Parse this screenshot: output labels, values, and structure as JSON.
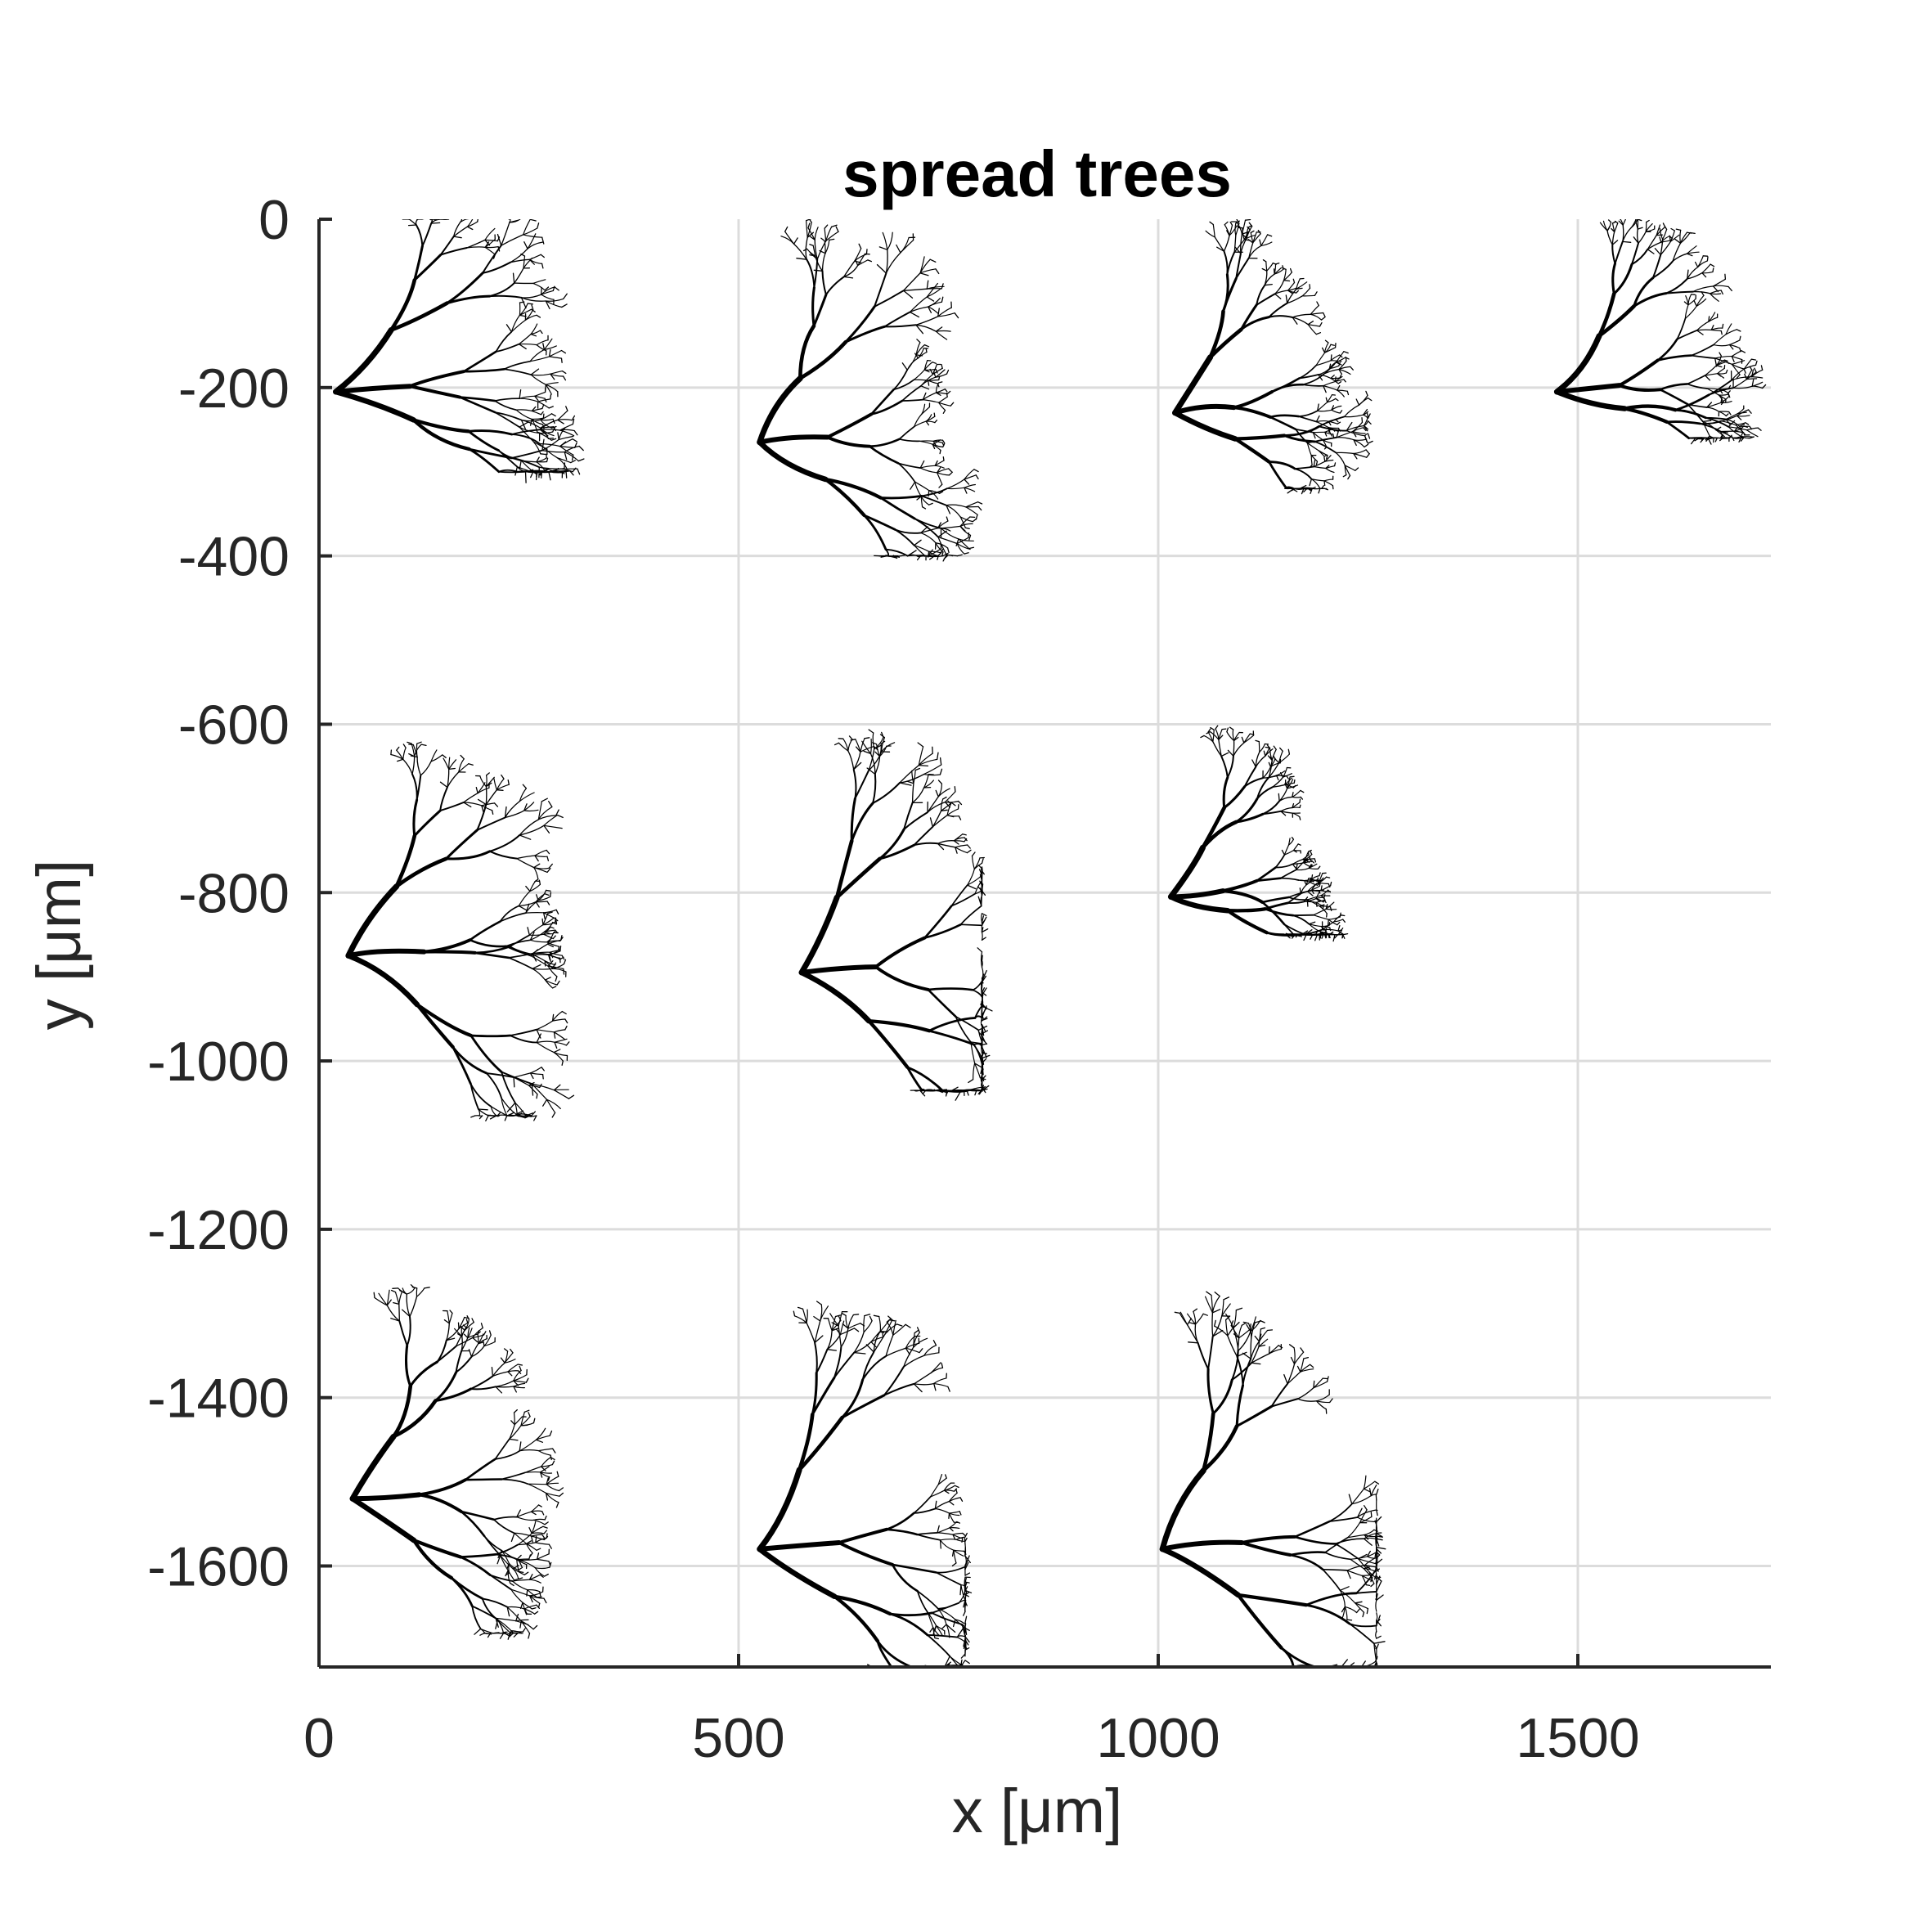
{
  "chart_data": {
    "type": "scatter",
    "title": "spread trees",
    "xlabel": "x [μm]",
    "ylabel": "y [μm]",
    "xlim": [
      0,
      1730
    ],
    "ylim": [
      -1720,
      0
    ],
    "xticks": [
      0,
      500,
      1000,
      1500
    ],
    "xtick_labels": [
      "0",
      "500",
      "1000",
      "1500"
    ],
    "yticks": [
      0,
      -200,
      -400,
      -600,
      -800,
      -1000,
      -1200,
      -1400,
      -1600
    ],
    "ytick_labels": [
      "0",
      "-200",
      "-400",
      "-600",
      "-800",
      "-1000",
      "-1200",
      "-1400",
      "-1600"
    ],
    "grid": true,
    "line_color": "#000000",
    "trees": [
      {
        "root": [
          20,
          -205
        ],
        "extent": {
          "xmax": 310,
          "ymin": -300,
          "ymax": 0
        }
      },
      {
        "root": [
          525,
          -265
        ],
        "extent": {
          "xmax": 790,
          "ymin": -400,
          "ymax": 0
        }
      },
      {
        "root": [
          1020,
          -230
        ],
        "extent": {
          "xmax": 1250,
          "ymin": -320,
          "ymax": 0
        }
      },
      {
        "root": [
          1475,
          -205
        ],
        "extent": {
          "xmax": 1720,
          "ymin": -260,
          "ymax": 0
        }
      },
      {
        "root": [
          35,
          -875
        ],
        "extent": {
          "xmax": 330,
          "ymin": -1065,
          "ymax": -605
        }
      },
      {
        "root": [
          575,
          -895
        ],
        "extent": {
          "xmax": 790,
          "ymin": -1035,
          "ymax": -605
        }
      },
      {
        "root": [
          1015,
          -805
        ],
        "extent": {
          "xmax": 1220,
          "ymin": -850,
          "ymax": -605
        }
      },
      {
        "root": [
          40,
          -1520
        ],
        "extent": {
          "xmax": 300,
          "ymin": -1680,
          "ymax": -1270
        }
      },
      {
        "root": [
          525,
          -1580
        ],
        "extent": {
          "xmax": 770,
          "ymin": -1720,
          "ymax": -1270
        }
      },
      {
        "root": [
          1005,
          -1580
        ],
        "extent": {
          "xmax": 1260,
          "ymin": -1720,
          "ymax": -1270
        }
      }
    ]
  }
}
